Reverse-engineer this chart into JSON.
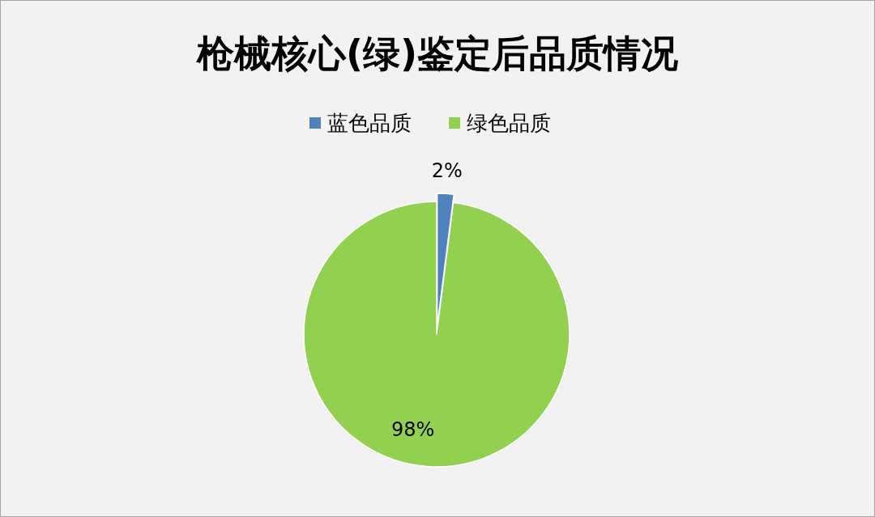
{
  "chart_data": {
    "type": "pie",
    "title": "枪械核心(绿)鉴定后品质情况",
    "categories": [
      "蓝色品质",
      "绿色品质"
    ],
    "values": [
      2,
      98
    ],
    "colors": [
      "#4f81bd",
      "#92d050"
    ],
    "value_labels": [
      "2%",
      "98%"
    ],
    "legend": "top"
  }
}
